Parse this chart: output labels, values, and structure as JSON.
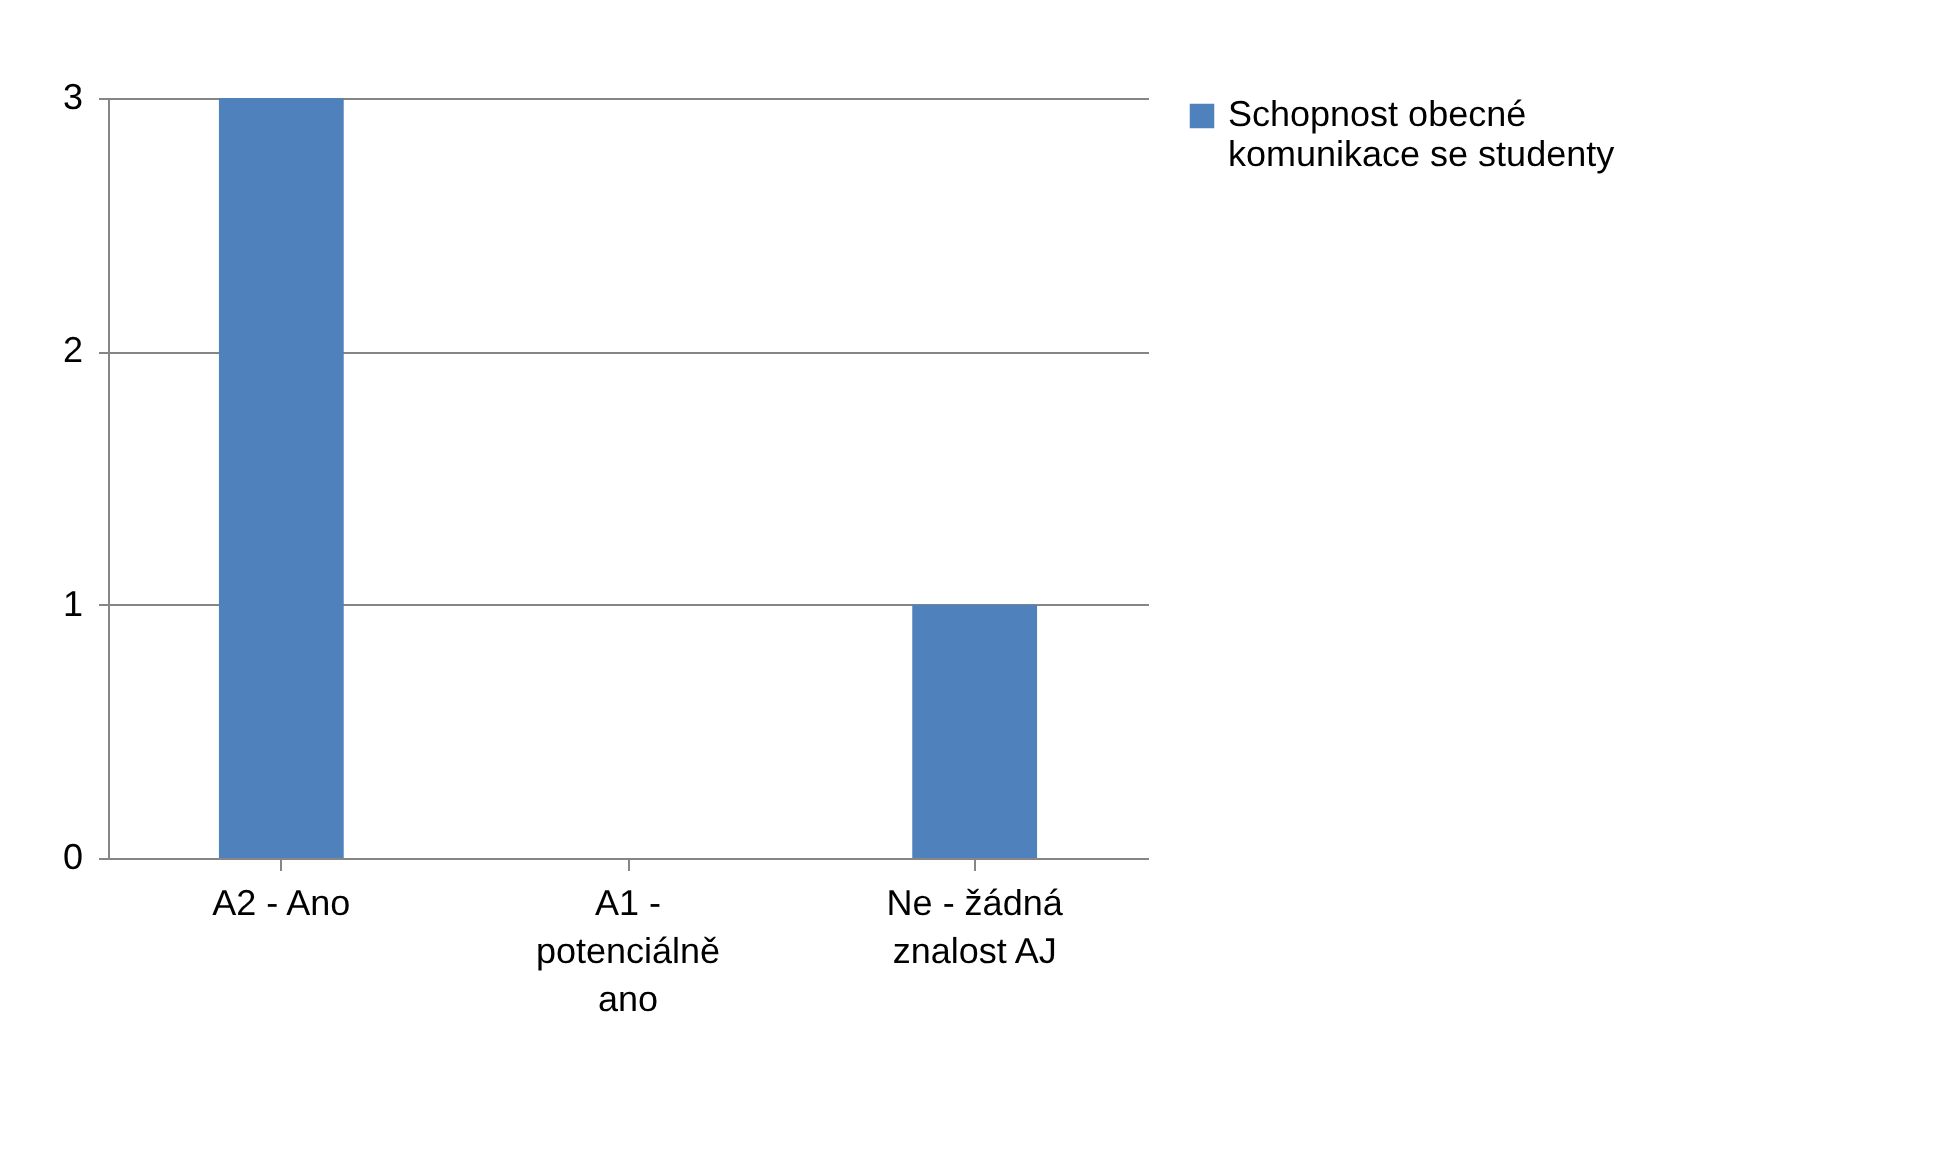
{
  "chart_data": {
    "type": "bar",
    "categories": [
      "A2 - Ano",
      "A1 - potenciálně ano",
      "Ne - žádná znalost AJ"
    ],
    "series": [
      {
        "name": "Schopnost obecné komunikace se studenty",
        "color": "#4f81bd",
        "values": [
          3,
          0,
          1
        ]
      }
    ],
    "ylim": [
      0,
      3
    ],
    "yticks": [
      0,
      1,
      2,
      3
    ],
    "grid": "y",
    "legend": "right"
  }
}
